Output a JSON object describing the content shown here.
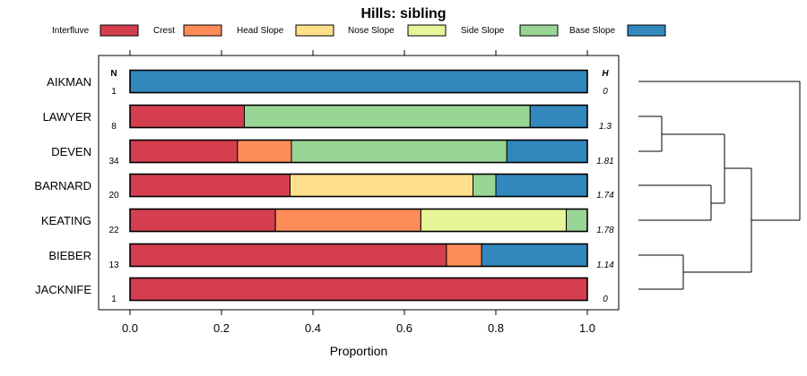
{
  "chart_data": {
    "type": "bar",
    "orientation": "horizontal",
    "stacked": true,
    "title": "Hills: sibling",
    "xlabel": "Proportion",
    "xlim": [
      0,
      1
    ],
    "xticks": [
      "0.0",
      "0.2",
      "0.4",
      "0.6",
      "0.8",
      "1.0"
    ],
    "xtick_values": [
      0,
      0.2,
      0.4,
      0.6,
      0.8,
      1.0
    ],
    "legend": {
      "position": "top",
      "entries": [
        {
          "name": "Interfluve",
          "color": "#d53e4f"
        },
        {
          "name": "Crest",
          "color": "#fc8d59"
        },
        {
          "name": "Head Slope",
          "color": "#fee08b"
        },
        {
          "name": "Nose Slope",
          "color": "#e6f598"
        },
        {
          "name": "Side Slope",
          "color": "#99d594"
        },
        {
          "name": "Base Slope",
          "color": "#3288bd"
        }
      ]
    },
    "n_header": "N",
    "h_header": "H",
    "categories": [
      "AIKMAN",
      "LAWYER",
      "DEVEN",
      "BARNARD",
      "KEATING",
      "BIEBER",
      "JACKNIFE"
    ],
    "n_values": [
      "1",
      "8",
      "34",
      "20",
      "22",
      "13",
      "1"
    ],
    "h_values": [
      "0",
      "1.3",
      "1.81",
      "1.74",
      "1.78",
      "1.14",
      "0"
    ],
    "series": [
      {
        "name": "Interfluve",
        "values": [
          0,
          0.25,
          0.235,
          0.35,
          0.318,
          0.692,
          1.0
        ]
      },
      {
        "name": "Crest",
        "values": [
          0,
          0,
          0.118,
          0,
          0.318,
          0.077,
          0
        ]
      },
      {
        "name": "Head Slope",
        "values": [
          0,
          0,
          0,
          0.4,
          0,
          0,
          0
        ]
      },
      {
        "name": "Nose Slope",
        "values": [
          0,
          0,
          0,
          0,
          0.318,
          0,
          0
        ]
      },
      {
        "name": "Side Slope",
        "values": [
          0,
          0.625,
          0.471,
          0.05,
          0.046,
          0,
          0
        ]
      },
      {
        "name": "Base Slope",
        "values": [
          1.0,
          0.125,
          0.176,
          0.2,
          0,
          0.231,
          0
        ]
      }
    ],
    "dendrogram": {
      "description": "sibling similarity clustering",
      "merges": [
        {
          "left": "LAWYER",
          "right": "DEVEN",
          "height": 0.15
        },
        {
          "left": "BARNARD",
          "right": "KEATING",
          "height": 0.45
        },
        {
          "left": "LAWYER+DEVEN",
          "right": "BARNARD+KEATING",
          "height": 0.55
        },
        {
          "left": "BIEBER",
          "right": "JACKNIFE",
          "height": 0.3
        },
        {
          "left": "LAWYER+DEVEN+BARNARD+KEATING",
          "right": "BIEBER+JACKNIFE",
          "height": 0.7
        },
        {
          "left": "AIKMAN",
          "right": "rest",
          "height": 1.0
        }
      ]
    }
  }
}
